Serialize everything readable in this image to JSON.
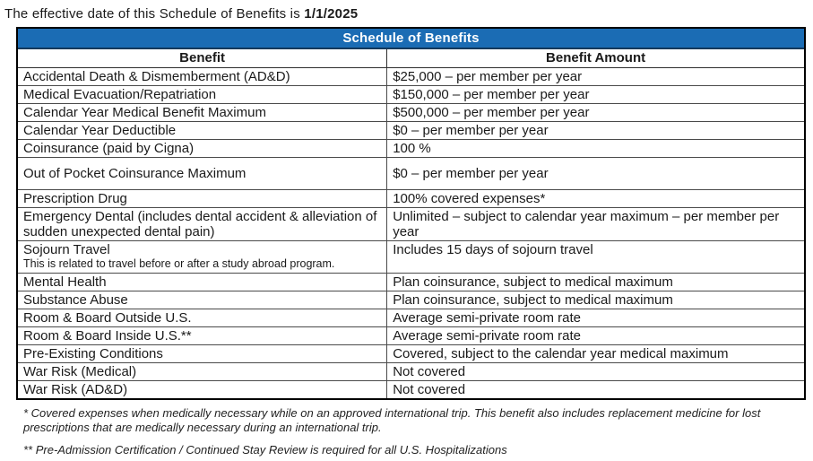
{
  "header": {
    "effective_prefix": "The effective date of this Schedule of Benefits is ",
    "effective_date": "1/1/2025"
  },
  "table": {
    "title": "Schedule of Benefits",
    "colors": {
      "title_bg": "#1b6cb4",
      "title_text": "#ffffff"
    },
    "columns": [
      "Benefit",
      "Benefit Amount"
    ],
    "rows": [
      {
        "benefit": "Accidental Death & Dismemberment (AD&D)",
        "amount": "$25,000 – per member per year"
      },
      {
        "benefit": "Medical Evacuation/Repatriation",
        "amount": "$150,000 – per member per year"
      },
      {
        "benefit": "Calendar Year Medical Benefit Maximum",
        "amount": "$500,000 – per member per year"
      },
      {
        "benefit": "Calendar Year Deductible",
        "amount": "$0 – per member per year"
      },
      {
        "benefit": "Coinsurance (paid by Cigna)",
        "amount": "100 %"
      },
      {
        "benefit": "Out of Pocket Coinsurance Maximum",
        "amount": "$0 – per member per year",
        "tall": true
      },
      {
        "benefit": "Prescription Drug",
        "amount": "100% covered expenses*"
      },
      {
        "benefit": "Emergency Dental (includes dental accident & alleviation of sudden unexpected dental pain)",
        "amount": "Unlimited – subject to calendar year maximum – per member per year"
      },
      {
        "benefit": "Sojourn Travel",
        "note": "This is related to travel before or after a study abroad program.",
        "amount": "Includes 15 days of sojourn travel"
      },
      {
        "benefit": "Mental Health",
        "amount": "Plan coinsurance, subject to medical maximum"
      },
      {
        "benefit": "Substance Abuse",
        "amount": "Plan coinsurance, subject to medical maximum"
      },
      {
        "benefit": "Room & Board Outside U.S.",
        "amount": "Average semi-private room rate"
      },
      {
        "benefit": "Room & Board Inside U.S.**",
        "amount": "Average semi-private room rate"
      },
      {
        "benefit": "Pre-Existing Conditions",
        "amount": "Covered, subject to the calendar year medical maximum"
      },
      {
        "benefit": "War Risk (Medical)",
        "amount": "Not covered"
      },
      {
        "benefit": "War Risk (AD&D)",
        "amount": "Not covered"
      }
    ]
  },
  "footnotes": [
    "* Covered expenses when medically necessary while on an approved international trip. This benefit also includes replacement medicine for lost prescriptions that are medically necessary during an international trip.",
    "** Pre-Admission Certification / Continued Stay Review is required for all U.S. Hospitalizations"
  ]
}
